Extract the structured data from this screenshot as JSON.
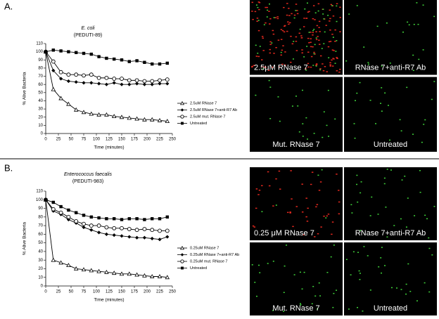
{
  "figure": {
    "panels": [
      {
        "label": "A.",
        "images": [
          "2.5μM RNase 7",
          "RNase 7+anti-R7 Ab",
          "Mut. RNase 7",
          "Untreated"
        ]
      },
      {
        "label": "B.",
        "images": [
          "0.25 μM RNase 7",
          "RNase 7+anti-R7 Ab",
          "Mut. RNase 7",
          "Untreated"
        ]
      }
    ]
  },
  "chart_data": [
    {
      "type": "line",
      "title": "E. coli",
      "subtitle": "(PEDUTI-89)",
      "x_label": "Time (minutes)",
      "y_label": "% Alive Bacteria",
      "x": [
        0,
        15,
        30,
        45,
        60,
        75,
        90,
        105,
        120,
        135,
        150,
        165,
        180,
        195,
        210,
        225,
        240
      ],
      "xlim": [
        0,
        250
      ],
      "xticks": [
        0,
        25,
        50,
        75,
        100,
        125,
        150,
        175,
        200,
        225,
        250
      ],
      "ylim": [
        0,
        110
      ],
      "yticks": [
        0,
        10,
        20,
        30,
        40,
        50,
        60,
        70,
        80,
        90,
        100,
        110
      ],
      "series": [
        {
          "name": "2.5uM RNase 7",
          "color": "#000000",
          "marker": "triangle-open",
          "values": [
            100,
            54,
            43,
            36,
            29,
            26,
            24,
            23,
            23,
            21,
            20,
            19,
            18,
            17,
            17,
            16,
            15
          ]
        },
        {
          "name": "2.5uM RNase 7+anti-R7 Ab",
          "color": "#000000",
          "marker": "diamond",
          "values": [
            100,
            77,
            67,
            64,
            63,
            62,
            62,
            61,
            60,
            62,
            60,
            60,
            61,
            60,
            60,
            61,
            61
          ]
        },
        {
          "name": "2.5uM mut. RNase 7",
          "color": "#000000",
          "marker": "circle-open",
          "values": [
            100,
            88,
            75,
            72,
            72,
            71,
            72,
            68,
            68,
            67,
            67,
            65,
            65,
            64,
            64,
            65,
            66
          ]
        },
        {
          "name": "Untreated",
          "color": "#000000",
          "marker": "square",
          "values": [
            100,
            102,
            101,
            100,
            99,
            98,
            97,
            94,
            92,
            91,
            90,
            88,
            89,
            87,
            85,
            85,
            86
          ]
        }
      ]
    },
    {
      "type": "line",
      "title": "Enterococcus faecalis",
      "subtitle": "(PEDUTI-983)",
      "x_label": "Time (minutes)",
      "y_label": "% Alive Bacteria",
      "x": [
        0,
        15,
        30,
        45,
        60,
        75,
        90,
        105,
        120,
        135,
        150,
        165,
        180,
        195,
        210,
        225,
        240
      ],
      "xlim": [
        0,
        250
      ],
      "xticks": [
        0,
        25,
        50,
        75,
        100,
        125,
        150,
        175,
        200,
        225,
        250
      ],
      "ylim": [
        0,
        110
      ],
      "yticks": [
        0,
        10,
        20,
        30,
        40,
        50,
        60,
        70,
        80,
        90,
        100,
        110
      ],
      "series": [
        {
          "name": "0.25uM RNase 7",
          "color": "#000000",
          "marker": "triangle-open",
          "values": [
            100,
            30,
            27,
            24,
            20,
            19,
            18,
            17,
            16,
            15,
            14,
            14,
            13,
            12,
            11,
            11,
            10
          ]
        },
        {
          "name": "0.25uM RNase 7+anti-R7 Ab",
          "color": "#000000",
          "marker": "diamond",
          "values": [
            100,
            87,
            83,
            77,
            73,
            68,
            65,
            62,
            60,
            59,
            58,
            57,
            56,
            56,
            55,
            54,
            57
          ]
        },
        {
          "name": "0.25uM mut. RNase 7",
          "color": "#000000",
          "marker": "circle-open",
          "values": [
            100,
            89,
            85,
            80,
            75,
            72,
            70,
            70,
            68,
            67,
            67,
            66,
            65,
            66,
            65,
            64,
            64
          ]
        },
        {
          "name": "Untreated",
          "color": "#000000",
          "marker": "square",
          "values": [
            100,
            97,
            92,
            88,
            85,
            82,
            80,
            79,
            78,
            78,
            77,
            78,
            78,
            77,
            78,
            78,
            80
          ]
        }
      ]
    }
  ]
}
